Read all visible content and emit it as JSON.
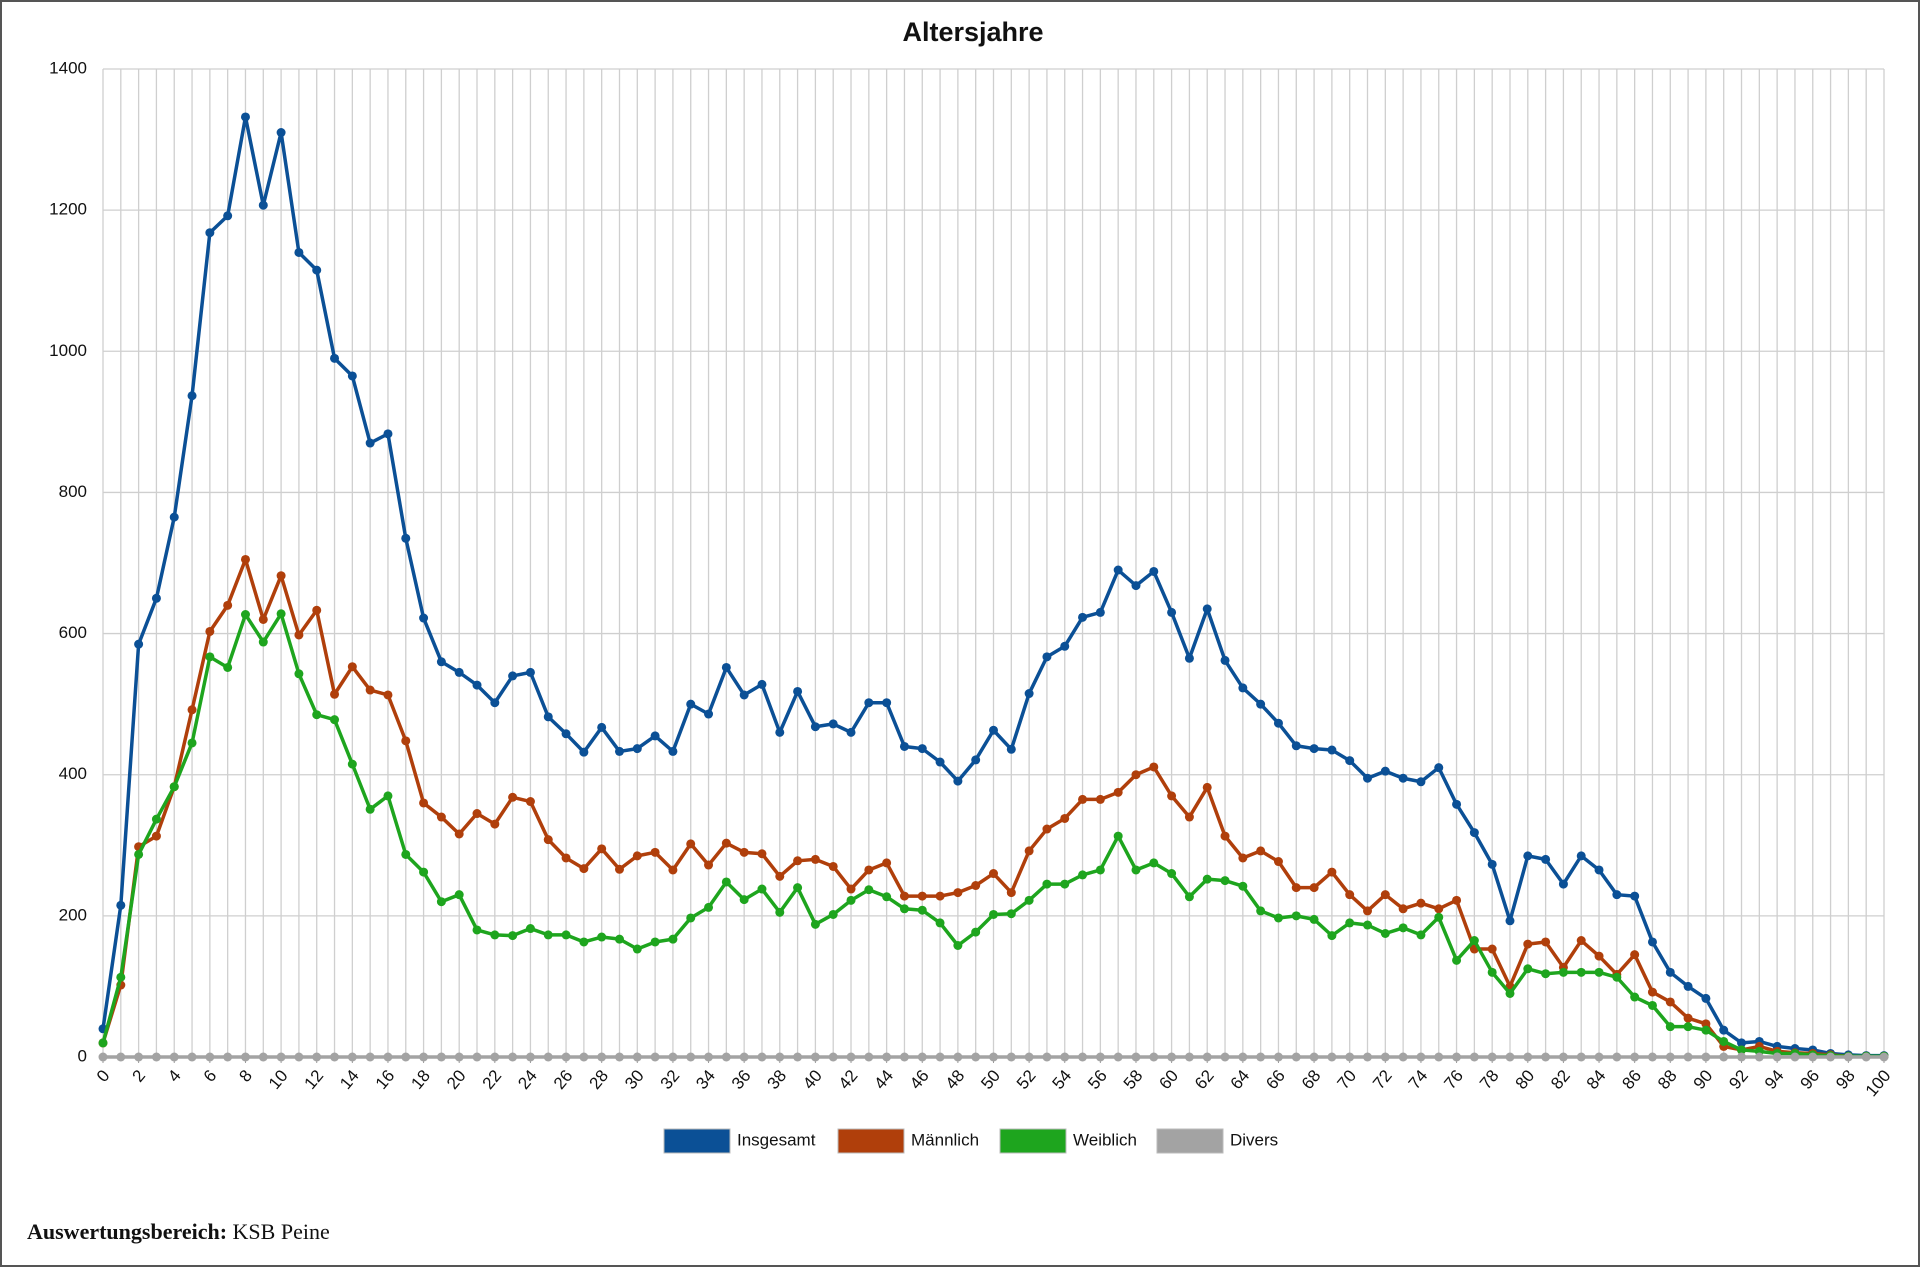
{
  "chart_data": {
    "type": "line",
    "title": "Altersjahre",
    "x": [
      0,
      1,
      2,
      3,
      4,
      5,
      6,
      7,
      8,
      9,
      10,
      11,
      12,
      13,
      14,
      15,
      16,
      17,
      18,
      19,
      20,
      21,
      22,
      23,
      24,
      25,
      26,
      27,
      28,
      29,
      30,
      31,
      32,
      33,
      34,
      35,
      36,
      37,
      38,
      39,
      40,
      41,
      42,
      43,
      44,
      45,
      46,
      47,
      48,
      49,
      50,
      51,
      52,
      53,
      54,
      55,
      56,
      57,
      58,
      59,
      60,
      61,
      62,
      63,
      64,
      65,
      66,
      67,
      68,
      69,
      70,
      71,
      72,
      73,
      74,
      75,
      76,
      77,
      78,
      79,
      80,
      81,
      82,
      83,
      84,
      85,
      86,
      87,
      88,
      89,
      90,
      91,
      92,
      93,
      94,
      95,
      96,
      97,
      98,
      99,
      100
    ],
    "xlim": [
      0,
      100
    ],
    "xticks": [
      0,
      2,
      4,
      6,
      8,
      10,
      12,
      14,
      16,
      18,
      20,
      22,
      24,
      26,
      28,
      30,
      32,
      34,
      36,
      38,
      40,
      42,
      44,
      46,
      48,
      50,
      52,
      54,
      56,
      58,
      60,
      62,
      64,
      66,
      68,
      70,
      72,
      74,
      76,
      78,
      80,
      82,
      84,
      86,
      88,
      90,
      92,
      94,
      96,
      98,
      100
    ],
    "ylim": [
      0,
      1400
    ],
    "yticks": [
      0,
      200,
      400,
      600,
      800,
      1000,
      1200,
      1400
    ],
    "grid": true,
    "legend": "bottom",
    "series": [
      {
        "name": "Insgesamt",
        "color": "#0b5096",
        "values": [
          40,
          215,
          585,
          650,
          765,
          937,
          1168,
          1192,
          1332,
          1207,
          1310,
          1140,
          1115,
          990,
          965,
          870,
          883,
          735,
          622,
          560,
          545,
          527,
          502,
          540,
          545,
          482,
          458,
          432,
          467,
          433,
          437,
          455,
          433,
          500,
          486,
          552,
          513,
          528,
          460,
          518,
          468,
          472,
          460,
          502,
          502,
          440,
          437,
          418,
          391,
          421,
          463,
          436,
          515,
          567,
          582,
          623,
          630,
          690,
          668,
          688,
          630,
          565,
          635,
          562,
          523,
          500,
          473,
          441,
          437,
          435,
          420,
          395,
          405,
          395,
          390,
          410,
          358,
          318,
          273,
          193,
          285,
          280,
          245,
          285,
          265,
          230,
          228,
          163,
          120,
          100,
          83,
          38,
          20,
          22,
          15,
          12,
          10,
          5,
          3,
          2,
          2
        ]
      },
      {
        "name": "Männlich",
        "color": "#b03f0b",
        "values": [
          20,
          102,
          298,
          313,
          383,
          492,
          603,
          640,
          705,
          620,
          682,
          598,
          633,
          514,
          553,
          520,
          513,
          448,
          360,
          340,
          316,
          345,
          330,
          368,
          362,
          308,
          282,
          267,
          295,
          266,
          285,
          290,
          265,
          302,
          272,
          303,
          290,
          288,
          256,
          278,
          280,
          270,
          238,
          265,
          275,
          228,
          228,
          228,
          233,
          243,
          260,
          233,
          292,
          323,
          338,
          365,
          365,
          375,
          400,
          411,
          370,
          340,
          382,
          313,
          282,
          292,
          277,
          240,
          240,
          262,
          230,
          207,
          230,
          210,
          218,
          210,
          222,
          153,
          153,
          100,
          160,
          163,
          127,
          165,
          143,
          117,
          145,
          92,
          78,
          55,
          47,
          15,
          10,
          15,
          8,
          6,
          5,
          3,
          1,
          1,
          1
        ]
      },
      {
        "name": "Weiblich",
        "color": "#1ea51e",
        "values": [
          20,
          113,
          287,
          337,
          383,
          445,
          567,
          552,
          627,
          588,
          628,
          543,
          485,
          478,
          415,
          351,
          370,
          287,
          262,
          220,
          230,
          180,
          173,
          172,
          182,
          173,
          173,
          163,
          170,
          167,
          153,
          163,
          167,
          197,
          212,
          248,
          223,
          238,
          205,
          240,
          188,
          202,
          222,
          237,
          227,
          210,
          208,
          190,
          158,
          177,
          202,
          203,
          222,
          245,
          245,
          258,
          265,
          313,
          265,
          275,
          260,
          227,
          252,
          250,
          242,
          207,
          197,
          200,
          195,
          172,
          190,
          187,
          175,
          183,
          173,
          198,
          137,
          165,
          120,
          90,
          125,
          118,
          120,
          120,
          120,
          113,
          85,
          73,
          43,
          43,
          38,
          22,
          10,
          8,
          5,
          5,
          3,
          2,
          1,
          1,
          1
        ]
      },
      {
        "name": "Divers",
        "color": "#a3a3a3",
        "values": [
          0,
          0,
          0,
          0,
          0,
          0,
          0,
          0,
          0,
          0,
          0,
          0,
          0,
          0,
          0,
          0,
          0,
          0,
          0,
          0,
          0,
          0,
          0,
          0,
          0,
          0,
          0,
          0,
          0,
          0,
          0,
          0,
          0,
          0,
          0,
          0,
          0,
          0,
          0,
          0,
          0,
          0,
          0,
          0,
          0,
          0,
          0,
          0,
          0,
          0,
          0,
          0,
          0,
          0,
          0,
          0,
          0,
          0,
          0,
          0,
          0,
          0,
          0,
          0,
          0,
          0,
          0,
          0,
          0,
          0,
          0,
          0,
          0,
          0,
          0,
          0,
          0,
          0,
          0,
          0,
          0,
          0,
          0,
          0,
          0,
          0,
          0,
          0,
          0,
          0,
          0,
          0,
          0,
          0,
          0,
          0,
          0,
          0,
          0,
          0,
          0
        ]
      }
    ],
    "footer": {
      "label": "Auswertungsbereich:",
      "value": "KSB Peine"
    }
  }
}
